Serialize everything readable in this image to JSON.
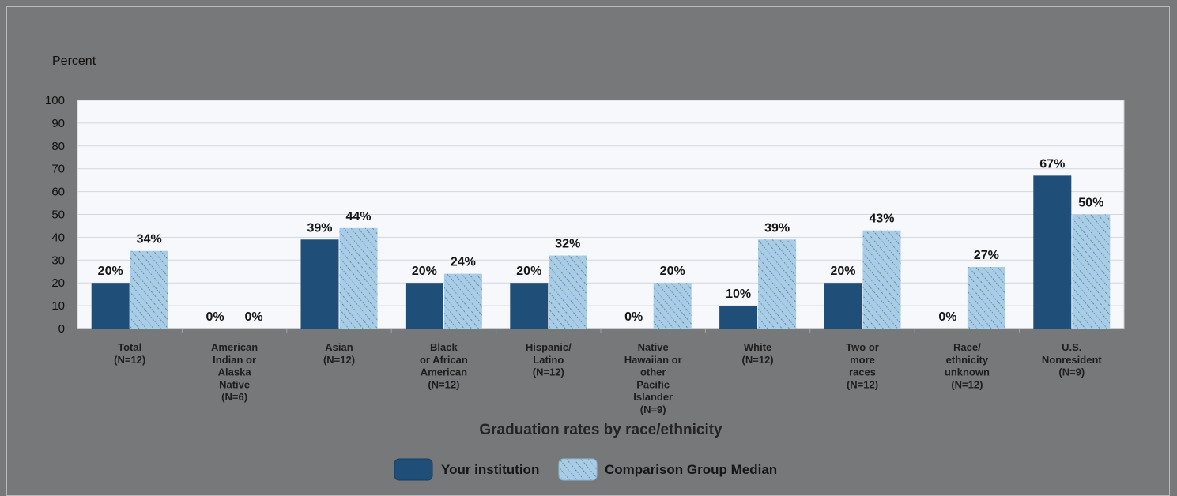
{
  "chart_data": {
    "type": "bar",
    "ylabel": "Percent",
    "xlabel": "Graduation rates by race/ethnicity",
    "ylim": [
      0,
      100
    ],
    "yticks": [
      0,
      10,
      20,
      30,
      40,
      50,
      60,
      70,
      80,
      90,
      100
    ],
    "grid": true,
    "legend_position": "bottom-center",
    "categories": [
      [
        "Total",
        "(N=12)"
      ],
      [
        "American",
        "Indian or",
        "Alaska",
        "Native",
        "(N=6)"
      ],
      [
        "Asian",
        "(N=12)"
      ],
      [
        "Black",
        "or African",
        "American",
        "(N=12)"
      ],
      [
        "Hispanic/",
        "Latino",
        "(N=12)"
      ],
      [
        "Native",
        "Hawaiian or",
        "other",
        "Pacific",
        "Islander",
        "(N=9)"
      ],
      [
        "White",
        "(N=12)"
      ],
      [
        "Two or",
        "more",
        "races",
        "(N=12)"
      ],
      [
        "Race/",
        "ethnicity",
        "unknown",
        "(N=12)"
      ],
      [
        "U.S.",
        "Nonresident",
        "(N=9)"
      ]
    ],
    "series": [
      {
        "name": "Your institution",
        "color": "#1f4e79",
        "pattern": "solid",
        "values": [
          20,
          0,
          39,
          20,
          20,
          0,
          10,
          20,
          0,
          67
        ],
        "labels": [
          "20%",
          "0%",
          "39%",
          "20%",
          "20%",
          "0%",
          "10%",
          "20%",
          "0%",
          "67%"
        ]
      },
      {
        "name": "Comparison Group Median",
        "color": "#a9cce8",
        "pattern": "hatched",
        "values": [
          34,
          0,
          44,
          24,
          32,
          20,
          39,
          43,
          27,
          50
        ],
        "labels": [
          "34%",
          "0%",
          "44%",
          "24%",
          "32%",
          "20%",
          "39%",
          "43%",
          "27%",
          "50%"
        ]
      }
    ]
  }
}
